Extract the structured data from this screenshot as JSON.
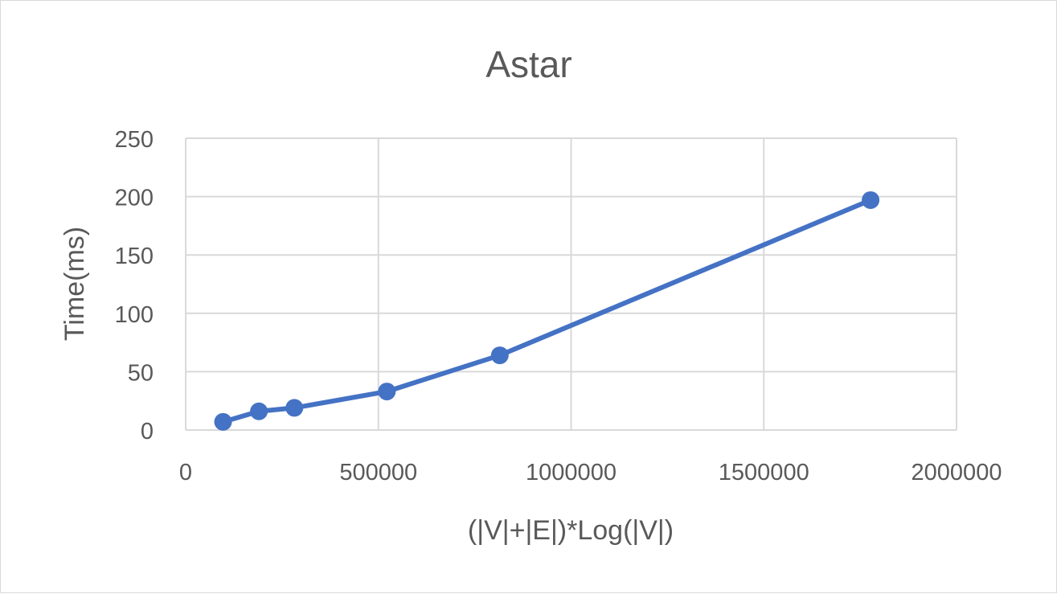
{
  "chart_data": {
    "type": "scatter",
    "title": "Astar",
    "xlabel": "(|V|+|E|)*Log(|V|)",
    "ylabel": "Time(ms)",
    "xlim": [
      0,
      2000000
    ],
    "ylim": [
      0,
      250
    ],
    "x_ticks": [
      0,
      500000,
      1000000,
      1500000,
      2000000
    ],
    "y_ticks": [
      0,
      50,
      100,
      150,
      200,
      250
    ],
    "grid": true,
    "legend": "none",
    "series": [
      {
        "color": "#4472c4",
        "line": true,
        "markers": true,
        "points": [
          {
            "x": 97000,
            "y": 7
          },
          {
            "x": 190000,
            "y": 16
          },
          {
            "x": 282000,
            "y": 19
          },
          {
            "x": 522000,
            "y": 33
          },
          {
            "x": 815000,
            "y": 64
          },
          {
            "x": 1777000,
            "y": 197
          }
        ]
      }
    ]
  }
}
